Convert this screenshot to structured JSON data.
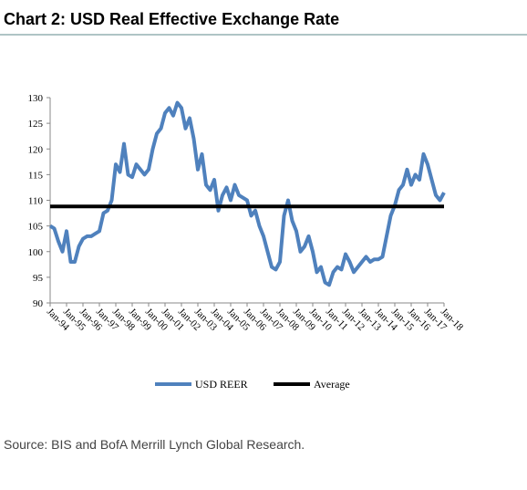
{
  "chart_data": {
    "type": "line",
    "title": "Chart 2: USD Real Effective Exchange Rate",
    "source": "Source: BIS and BofA Merrill Lynch Global Research.",
    "categories": [
      "Jan-94",
      null,
      null,
      null,
      "Jan-95",
      null,
      null,
      null,
      "Jan-96",
      null,
      null,
      null,
      "Jan-97",
      null,
      null,
      null,
      "Jan-98",
      null,
      null,
      null,
      "Jan-99",
      null,
      null,
      null,
      "Jan-00",
      null,
      null,
      null,
      "Jan-01",
      null,
      null,
      null,
      "Jan-02",
      null,
      null,
      null,
      "Jan-03",
      null,
      null,
      null,
      "Jan-04",
      null,
      null,
      null,
      "Jan-05",
      null,
      null,
      null,
      "Jan-06",
      null,
      null,
      null,
      "Jan-07",
      null,
      null,
      null,
      "Jan-08",
      null,
      null,
      null,
      "Jan-09",
      null,
      null,
      null,
      "Jan-10",
      null,
      null,
      null,
      "Jan-11",
      null,
      null,
      null,
      "Jan-12",
      null,
      null,
      null,
      "Jan-13",
      null,
      null,
      null,
      "Jan-14",
      null,
      null,
      null,
      "Jan-15",
      null,
      null,
      null,
      "Jan-16",
      null,
      null,
      null,
      "Jan-17",
      null,
      null,
      null,
      "Jan-18"
    ],
    "series": [
      {
        "name": "USD REER",
        "color": "#4f81bd",
        "values": [
          105,
          104.5,
          102,
          100,
          104,
          98,
          98,
          101,
          102.5,
          103,
          103,
          103.5,
          104,
          107.5,
          108,
          110,
          117,
          115.5,
          121,
          115,
          114.5,
          117,
          116,
          115,
          116,
          120,
          123,
          124,
          127,
          128,
          126.5,
          129,
          128,
          124,
          126,
          122,
          116,
          119,
          113,
          112,
          114,
          108,
          111,
          112.5,
          110,
          113,
          111,
          110.5,
          110,
          107,
          108,
          105,
          103,
          100,
          97,
          96.5,
          98,
          107,
          110,
          106,
          104,
          100,
          101,
          103,
          100,
          96,
          97,
          94,
          93.5,
          96,
          97,
          96.5,
          99.5,
          98,
          96,
          97,
          98,
          99,
          98,
          98.5,
          98.5,
          99,
          103,
          107,
          109,
          112,
          113,
          116,
          113,
          115,
          114,
          119,
          117,
          114,
          111,
          110,
          111.5
        ]
      }
    ],
    "average": {
      "name": "Average",
      "color": "#000000",
      "value": 108.8
    },
    "ylim": [
      90,
      130
    ],
    "yticks": [
      90,
      95,
      100,
      105,
      110,
      115,
      120,
      125,
      130
    ]
  }
}
